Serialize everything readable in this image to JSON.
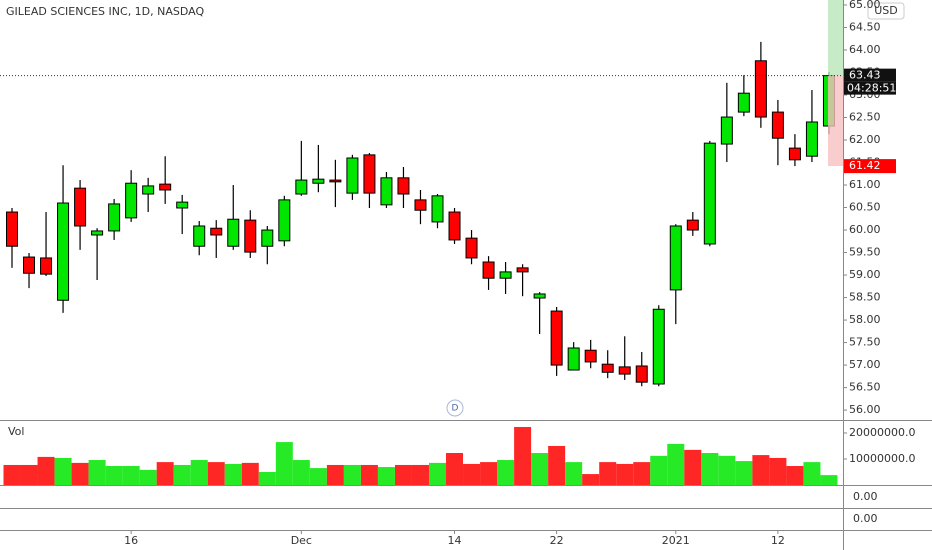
{
  "chart_data": {
    "type": "candlestick",
    "title": "GILEAD SCIENCES INC, 1D, NASDAQ",
    "currency": "USD",
    "navigation_button": "D",
    "categories": [
      null,
      null,
      null,
      null,
      null,
      null,
      null,
      "16",
      null,
      null,
      null,
      null,
      null,
      null,
      null,
      null,
      null,
      "Dec",
      null,
      null,
      null,
      null,
      null,
      null,
      null,
      null,
      "14",
      null,
      null,
      null,
      null,
      null,
      "22",
      null,
      null,
      null,
      null,
      null,
      null,
      "2021",
      null,
      null,
      null,
      null,
      null,
      "12",
      null,
      null,
      null
    ],
    "open": [
      60.4,
      59.4,
      59.38,
      58.44,
      60.93,
      59.89,
      59.98,
      60.27,
      60.8,
      61.02,
      60.49,
      59.64,
      60.04,
      59.64,
      60.22,
      59.64,
      59.76,
      60.8,
      61.04,
      61.11,
      60.82,
      61.67,
      60.56,
      61.16,
      60.67,
      60.18,
      60.4,
      59.82,
      59.29,
      58.93,
      59.16,
      58.49,
      58.2,
      56.89,
      57.33,
      57.02,
      56.96,
      56.98,
      56.58,
      58.67,
      60.22,
      59.69,
      61.91,
      62.62,
      63.76,
      62.62,
      61.82,
      61.64,
      62.31
    ],
    "high": [
      60.49,
      59.49,
      60.4,
      61.44,
      61.11,
      60.04,
      60.69,
      61.33,
      61.16,
      61.64,
      60.78,
      60.2,
      60.22,
      61.0,
      60.44,
      60.09,
      60.76,
      61.98,
      61.89,
      61.56,
      61.67,
      61.71,
      61.29,
      61.4,
      60.89,
      60.8,
      60.49,
      60.0,
      59.42,
      59.29,
      59.24,
      58.62,
      58.29,
      57.51,
      57.56,
      57.33,
      57.64,
      57.29,
      58.33,
      60.13,
      60.4,
      61.98,
      63.27,
      63.44,
      64.18,
      62.89,
      62.13,
      63.11,
      63.51
    ],
    "low": [
      59.16,
      58.71,
      58.98,
      58.16,
      59.56,
      58.89,
      59.78,
      60.18,
      60.4,
      60.58,
      59.91,
      59.44,
      59.38,
      59.56,
      59.38,
      59.24,
      59.64,
      60.76,
      60.84,
      60.51,
      60.67,
      60.49,
      60.49,
      60.49,
      60.13,
      60.04,
      59.69,
      59.24,
      58.67,
      58.58,
      58.53,
      57.69,
      56.76,
      56.89,
      56.93,
      56.71,
      56.67,
      56.53,
      56.53,
      57.91,
      59.87,
      59.64,
      61.51,
      62.53,
      62.27,
      61.44,
      61.42,
      61.51,
      62.13
    ],
    "close": [
      59.64,
      59.04,
      59.02,
      60.6,
      60.09,
      59.98,
      60.58,
      61.04,
      60.98,
      60.89,
      60.62,
      60.09,
      59.89,
      60.24,
      59.51,
      60.0,
      60.67,
      61.11,
      61.13,
      61.07,
      61.6,
      60.82,
      61.16,
      60.8,
      60.44,
      60.76,
      59.78,
      59.38,
      58.93,
      59.07,
      59.07,
      58.58,
      57.0,
      57.38,
      57.07,
      56.84,
      56.8,
      56.62,
      58.24,
      60.09,
      60.0,
      61.93,
      62.51,
      63.04,
      62.51,
      62.04,
      61.56,
      62.4,
      63.43
    ],
    "up_color": "#00e600",
    "down_color": "#ff0000",
    "ylim": [
      55.78,
      65.11
    ],
    "yticks": [
      {
        "value": 65,
        "label": "65.00"
      },
      {
        "value": 64.5,
        "label": "64.50"
      },
      {
        "value": 64,
        "label": "64.00"
      },
      {
        "value": 63.5,
        "label": "63.50"
      },
      {
        "value": 63,
        "label": "63.00"
      },
      {
        "value": 62.5,
        "label": "62.50"
      },
      {
        "value": 62,
        "label": "62.00"
      },
      {
        "value": 61.5,
        "label": "61.50"
      },
      {
        "value": 61,
        "label": "61.00"
      },
      {
        "value": 60.5,
        "label": "60.50"
      },
      {
        "value": 60,
        "label": "60.00"
      },
      {
        "value": 59.5,
        "label": "59.50"
      },
      {
        "value": 59,
        "label": "59.00"
      },
      {
        "value": 58.5,
        "label": "58.50"
      },
      {
        "value": 58,
        "label": "58.00"
      },
      {
        "value": 57.5,
        "label": "57.50"
      },
      {
        "value": 57,
        "label": "57.00"
      },
      {
        "value": 56.5,
        "label": "56.50"
      },
      {
        "value": 56,
        "label": "56.00"
      }
    ],
    "last_price": 63.43,
    "countdown": "04:28:51",
    "marker_price": 61.42,
    "volume": {
      "label": "Vol",
      "values": [
        7700000,
        7700000,
        10800000,
        10400000,
        8500000,
        9600000,
        7300000,
        7300000,
        5800000,
        8800000,
        7700000,
        9600000,
        8800000,
        8100000,
        8500000,
        5000000,
        16500000,
        9600000,
        6500000,
        7700000,
        7700000,
        7700000,
        6900000,
        7700000,
        7700000,
        8500000,
        12300000,
        8100000,
        8800000,
        9600000,
        22300000,
        12300000,
        15000000,
        8800000,
        4200000,
        8800000,
        8100000,
        8800000,
        11200000,
        15800000,
        13500000,
        12300000,
        11200000,
        9200000,
        11500000,
        10400000,
        7300000,
        8800000,
        3800000
      ],
      "ylim": [
        0,
        24600000
      ],
      "yticks": [
        {
          "value": 20000000,
          "label": "20000000.0"
        },
        {
          "value": 10000000,
          "label": "10000000.0"
        }
      ]
    },
    "panes": [
      {
        "yticks": [
          {
            "value": 0,
            "label": "0.00"
          }
        ]
      },
      {
        "yticks": [
          {
            "value": 0,
            "label": "0.00"
          }
        ]
      }
    ]
  }
}
